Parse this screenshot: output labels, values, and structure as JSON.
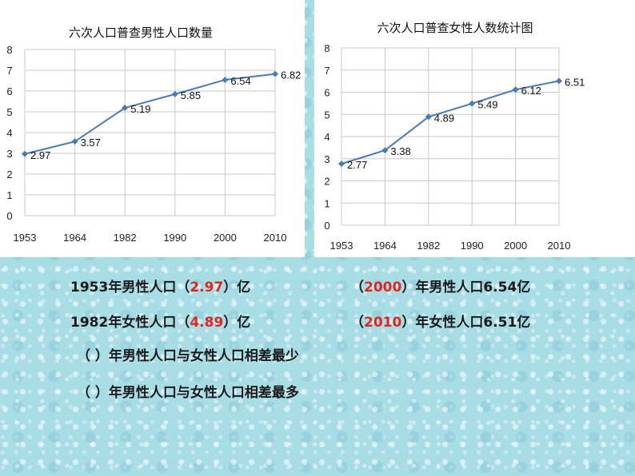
{
  "chart_data": [
    {
      "type": "line",
      "title": "六次人口普查男性人口数量",
      "categories": [
        "1953",
        "1964",
        "1982",
        "1990",
        "2000",
        "2010"
      ],
      "values": [
        2.97,
        3.57,
        5.19,
        5.85,
        6.54,
        6.82
      ],
      "data_labels": [
        "2.97",
        "3.57",
        "5.19",
        "5.85",
        "6.54",
        "6.82"
      ],
      "y_ticks": [
        "0",
        "1",
        "2",
        "3",
        "4",
        "5",
        "6",
        "7",
        "8"
      ],
      "ylim": [
        0,
        8
      ],
      "grid": true,
      "line_color": "#4a7bb7",
      "grid_color": "#c9c9c9"
    },
    {
      "type": "line",
      "title": "六次人口普查女性人数统计图",
      "categories": [
        "1953",
        "1964",
        "1982",
        "1990",
        "2000",
        "2010"
      ],
      "values": [
        2.77,
        3.38,
        4.89,
        5.49,
        6.12,
        6.51
      ],
      "data_labels": [
        "2.77",
        "3.38",
        "4.89",
        "5.49",
        "6.12",
        "6.51"
      ],
      "y_ticks": [
        "0",
        "1",
        "2",
        "3",
        "4",
        "5",
        "6",
        "7",
        "8"
      ],
      "ylim": [
        0,
        8
      ],
      "grid": true,
      "line_color": "#4a7bb7",
      "grid_color": "#c9c9c9"
    }
  ],
  "questions": {
    "q1": {
      "before": "1953年男性人口（",
      "answer": "2.97",
      "after": "）亿"
    },
    "q2": {
      "before": "（",
      "answer": "2000",
      "after": "）年男性人口6.54亿"
    },
    "q3": {
      "before": "1982年女性人口（",
      "answer": "4.89",
      "after": "）亿"
    },
    "q4": {
      "before": "（",
      "answer": "2010",
      "after": "）年女性人口6.51亿"
    },
    "q5": {
      "text": "（      ）年男性人口与女性人口相差最少"
    },
    "q6": {
      "text": "（      ）年男性人口与女性人口相差最多"
    }
  },
  "colors": {
    "answer": "#e0261f",
    "background": "#a9dde6"
  }
}
